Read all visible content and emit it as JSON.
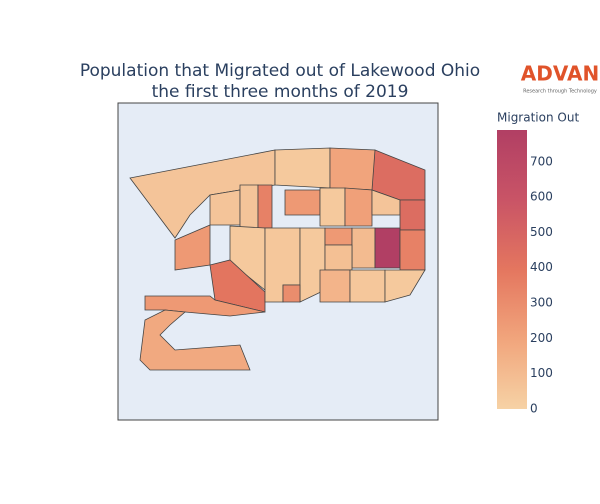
{
  "chart_data": {
    "type": "choropleth",
    "title": [
      "Population that Migrated out of Lakewood Ohio",
      "the first three months of 2019"
    ],
    "colorbar_title": "Migration Out",
    "zlim": [
      0,
      790
    ],
    "zticks": [
      0,
      100,
      200,
      300,
      400,
      500,
      600,
      700
    ],
    "colorscale": [
      "#f6d2a5",
      "#f1a57c",
      "#e4765f",
      "#c95466",
      "#b13f64"
    ],
    "values": [
      60,
      40,
      200,
      450,
      250,
      60,
      60,
      350,
      250,
      40,
      220,
      60,
      450,
      40,
      400,
      50,
      40,
      250,
      100,
      790,
      350,
      80,
      130,
      50,
      40,
      300,
      250,
      180
    ]
  },
  "logo": {
    "name": "ADVAN",
    "tagline": "Research through Technology"
  }
}
